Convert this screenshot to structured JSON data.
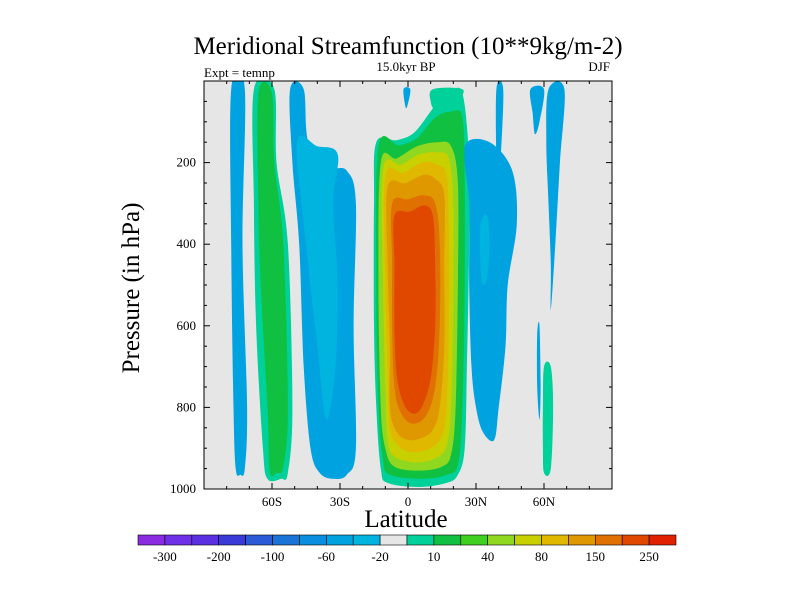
{
  "chart_data": {
    "type": "heatmap",
    "title": "Meridional Streamfunction (10**9kg/m-2)",
    "subtitle": "15.0kyr BP",
    "left_label": "Expt = temnp",
    "right_label": "DJF",
    "xlabel": "Latitude",
    "ylabel": "Pressure (in hPa)",
    "xlim": [
      -90,
      90
    ],
    "ylim": [
      0,
      1000
    ],
    "x_ticks": [
      {
        "value": -60,
        "label": "60S"
      },
      {
        "value": -30,
        "label": "30S"
      },
      {
        "value": 0,
        "label": "0"
      },
      {
        "value": 30,
        "label": "30N"
      },
      {
        "value": 60,
        "label": "60N"
      }
    ],
    "y_ticks": [
      {
        "value": 200,
        "label": "200"
      },
      {
        "value": 400,
        "label": "400"
      },
      {
        "value": 600,
        "label": "600"
      },
      {
        "value": 800,
        "label": "800"
      },
      {
        "value": 1000,
        "label": "1000"
      }
    ],
    "background_color": "#e6e6e6",
    "colorbar": {
      "colors": [
        "#8a2be2",
        "#7030e8",
        "#5a30e0",
        "#3a3ad8",
        "#2a5ad8",
        "#1a74d8",
        "#0a8ee0",
        "#00a2e0",
        "#00b4e0",
        "#e6e6e6",
        "#00d09a",
        "#10c040",
        "#40d020",
        "#90d820",
        "#c8d000",
        "#e0b800",
        "#e09800",
        "#e07000",
        "#e04800",
        "#e02000"
      ],
      "labels": [
        "-300",
        "-200",
        "-100",
        "-60",
        "-20",
        "10",
        "40",
        "80",
        "150",
        "250"
      ]
    },
    "features": [
      {
        "name": "cell-sh-polar-neg",
        "level": 1,
        "color": "#00a2e0",
        "points": [
          [
            -78,
            20
          ],
          [
            -72,
            20
          ],
          [
            -73,
            400
          ],
          [
            -71,
            800
          ],
          [
            -72,
            950
          ],
          [
            -74,
            965
          ],
          [
            -76,
            950
          ],
          [
            -77,
            800
          ],
          [
            -78,
            400
          ]
        ]
      },
      {
        "name": "cell-sh-mid-positive-outer",
        "level": 1,
        "color": "#00d09a",
        "points": [
          [
            -68,
            20
          ],
          [
            -59,
            20
          ],
          [
            -58,
            200
          ],
          [
            -53,
            400
          ],
          [
            -51,
            800
          ],
          [
            -53,
            960
          ],
          [
            -56,
            975
          ],
          [
            -62,
            975
          ],
          [
            -64,
            900
          ],
          [
            -67,
            600
          ],
          [
            -68,
            300
          ]
        ]
      },
      {
        "name": "cell-sh-mid-positive",
        "level": 2,
        "color": "#10c040",
        "points": [
          [
            -66,
            30
          ],
          [
            -60,
            30
          ],
          [
            -59,
            200
          ],
          [
            -55,
            400
          ],
          [
            -53,
            800
          ],
          [
            -55,
            945
          ],
          [
            -58,
            960
          ],
          [
            -61,
            955
          ],
          [
            -62,
            800
          ],
          [
            -65,
            500
          ],
          [
            -66,
            300
          ]
        ]
      },
      {
        "name": "cell-sh-ferrel-neg",
        "level": 1,
        "color": "#00a2e0",
        "points": [
          [
            -52,
            20
          ],
          [
            -46,
            20
          ],
          [
            -44,
            150
          ],
          [
            -35,
            210
          ],
          [
            -27,
            220
          ],
          [
            -23,
            300
          ],
          [
            -24,
            600
          ],
          [
            -23,
            900
          ],
          [
            -27,
            965
          ],
          [
            -33,
            975
          ],
          [
            -39,
            960
          ],
          [
            -43,
            900
          ],
          [
            -46,
            700
          ],
          [
            -48,
            400
          ],
          [
            -51,
            200
          ]
        ]
      },
      {
        "name": "cell-sh-ferrel-core",
        "level": 2,
        "color": "#00b4e0",
        "points": [
          [
            -49,
            150
          ],
          [
            -40,
            160
          ],
          [
            -31,
            180
          ],
          [
            -33,
            300
          ],
          [
            -31,
            500
          ],
          [
            -32,
            700
          ],
          [
            -36,
            830
          ],
          [
            -40,
            650
          ],
          [
            -45,
            400
          ]
        ]
      },
      {
        "name": "cell-hadley-ring1",
        "level": 1,
        "color": "#00d09a",
        "points": [
          [
            -14,
            150
          ],
          [
            -5,
            145
          ],
          [
            3,
            125
          ],
          [
            12,
            60
          ],
          [
            18,
            30
          ],
          [
            24,
            30
          ],
          [
            27,
            200
          ],
          [
            27,
            400
          ],
          [
            26,
            700
          ],
          [
            25,
            900
          ],
          [
            22,
            965
          ],
          [
            17,
            985
          ],
          [
            5,
            995
          ],
          [
            -9,
            985
          ],
          [
            -12,
            950
          ],
          [
            -14,
            800
          ],
          [
            -15,
            600
          ],
          [
            -15,
            300
          ]
        ]
      },
      {
        "name": "cell-hadley-ring2",
        "level": 2,
        "color": "#10c040",
        "points": [
          [
            -13,
            160
          ],
          [
            -4,
            158
          ],
          [
            4,
            140
          ],
          [
            12,
            90
          ],
          [
            19,
            75
          ],
          [
            24,
            90
          ],
          [
            25,
            250
          ],
          [
            25,
            500
          ],
          [
            24,
            800
          ],
          [
            22,
            940
          ],
          [
            17,
            965
          ],
          [
            6,
            975
          ],
          [
            -8,
            965
          ],
          [
            -11,
            930
          ],
          [
            -13,
            800
          ],
          [
            -14,
            500
          ]
        ]
      },
      {
        "name": "cell-hadley-ring3",
        "level": 3,
        "color": "#90d820",
        "points": [
          [
            -12,
            200
          ],
          [
            -5,
            190
          ],
          [
            4,
            160
          ],
          [
            13,
            150
          ],
          [
            19,
            160
          ],
          [
            22,
            250
          ],
          [
            22,
            500
          ],
          [
            21,
            800
          ],
          [
            19,
            915
          ],
          [
            15,
            945
          ],
          [
            5,
            955
          ],
          [
            -6,
            945
          ],
          [
            -10,
            900
          ],
          [
            -12,
            800
          ],
          [
            -13,
            500
          ]
        ]
      },
      {
        "name": "cell-hadley-ring4",
        "level": 4,
        "color": "#c8d000",
        "points": [
          [
            -11,
            215
          ],
          [
            -3,
            205
          ],
          [
            5,
            180
          ],
          [
            13,
            175
          ],
          [
            18,
            190
          ],
          [
            20,
            300
          ],
          [
            20,
            550
          ],
          [
            19,
            800
          ],
          [
            17,
            895
          ],
          [
            12,
            925
          ],
          [
            3,
            935
          ],
          [
            -6,
            920
          ],
          [
            -9,
            880
          ],
          [
            -10,
            750
          ],
          [
            -11,
            500
          ]
        ]
      },
      {
        "name": "cell-hadley-ring5",
        "level": 5,
        "color": "#e0b800",
        "points": [
          [
            -10,
            235
          ],
          [
            -2,
            225
          ],
          [
            6,
            200
          ],
          [
            13,
            205
          ],
          [
            17,
            230
          ],
          [
            18,
            350
          ],
          [
            18,
            600
          ],
          [
            17,
            800
          ],
          [
            15,
            870
          ],
          [
            10,
            900
          ],
          [
            2,
            910
          ],
          [
            -4,
            895
          ],
          [
            -8,
            850
          ],
          [
            -9,
            700
          ],
          [
            -10,
            500
          ]
        ]
      },
      {
        "name": "cell-hadley-ring6",
        "level": 6,
        "color": "#e09800",
        "points": [
          [
            -9,
            260
          ],
          [
            -1,
            250
          ],
          [
            7,
            230
          ],
          [
            12,
            240
          ],
          [
            16,
            280
          ],
          [
            16,
            450
          ],
          [
            16,
            650
          ],
          [
            14,
            800
          ],
          [
            11,
            855
          ],
          [
            6,
            875
          ],
          [
            0,
            880
          ],
          [
            -5,
            860
          ],
          [
            -8,
            800
          ],
          [
            -8,
            650
          ],
          [
            -9,
            450
          ]
        ]
      },
      {
        "name": "cell-hadley-ring7",
        "level": 7,
        "color": "#e07000",
        "points": [
          [
            -7,
            300
          ],
          [
            0,
            290
          ],
          [
            7,
            280
          ],
          [
            12,
            300
          ],
          [
            14,
            400
          ],
          [
            14,
            600
          ],
          [
            12,
            750
          ],
          [
            8,
            820
          ],
          [
            2,
            840
          ],
          [
            -3,
            815
          ],
          [
            -6,
            750
          ],
          [
            -7,
            600
          ],
          [
            -7,
            450
          ]
        ]
      },
      {
        "name": "cell-hadley-core",
        "level": 8,
        "color": "#e04800",
        "points": [
          [
            -6,
            330
          ],
          [
            1,
            320
          ],
          [
            7,
            305
          ],
          [
            11,
            330
          ],
          [
            12,
            450
          ],
          [
            12,
            600
          ],
          [
            10,
            730
          ],
          [
            6,
            800
          ],
          [
            2,
            815
          ],
          [
            -2,
            790
          ],
          [
            -5,
            720
          ],
          [
            -6,
            600
          ],
          [
            -6,
            450
          ]
        ]
      },
      {
        "name": "cell-nh-upper-neg",
        "level": 1,
        "color": "#00a2e0",
        "points": [
          [
            -2,
            20
          ],
          [
            1,
            20
          ],
          [
            0,
            55
          ],
          [
            -1,
            65
          ]
        ]
      },
      {
        "name": "cell-nh-upper-pos",
        "level": 1,
        "color": "#00d09a",
        "points": [
          [
            11,
            20
          ],
          [
            24,
            20
          ],
          [
            22,
            50
          ],
          [
            18,
            65
          ],
          [
            12,
            70
          ],
          [
            10,
            50
          ]
        ]
      },
      {
        "name": "cell-nh-ferrel-neg",
        "level": 1,
        "color": "#00a2e0",
        "points": [
          [
            25,
            160
          ],
          [
            36,
            150
          ],
          [
            46,
            220
          ],
          [
            48,
            350
          ],
          [
            44,
            500
          ],
          [
            43,
            650
          ],
          [
            40,
            800
          ],
          [
            38,
            880
          ],
          [
            33,
            860
          ],
          [
            30,
            800
          ],
          [
            28,
            700
          ],
          [
            27,
            500
          ],
          [
            27,
            300
          ]
        ]
      },
      {
        "name": "cell-nh-ferrel-core",
        "level": 2,
        "color": "#00b4e0",
        "points": [
          [
            32,
            350
          ],
          [
            35,
            330
          ],
          [
            36,
            400
          ],
          [
            35,
            480
          ],
          [
            33,
            500
          ],
          [
            32,
            450
          ]
        ]
      },
      {
        "name": "cell-nh-upper-neg2",
        "level": 1,
        "color": "#00a2e0",
        "points": [
          [
            39,
            20
          ],
          [
            42,
            20
          ],
          [
            41,
            180
          ],
          [
            40,
            260
          ],
          [
            39,
            200
          ]
        ]
      },
      {
        "name": "cell-nh-upper-neg3",
        "level": 1,
        "color": "#00a2e0",
        "points": [
          [
            54,
            20
          ],
          [
            60,
            20
          ],
          [
            58,
            100
          ],
          [
            56,
            130
          ],
          [
            55,
            80
          ]
        ]
      },
      {
        "name": "cell-nh-polar-neg",
        "level": 1,
        "color": "#00a2e0",
        "points": [
          [
            62,
            20
          ],
          [
            69,
            20
          ],
          [
            67,
            200
          ],
          [
            65,
            400
          ],
          [
            63,
            560
          ],
          [
            63,
            450
          ],
          [
            62,
            300
          ],
          [
            61,
            150
          ]
        ]
      },
      {
        "name": "cell-nh-polar-neg-low",
        "level": 1,
        "color": "#00a2e0",
        "points": [
          [
            57,
            620
          ],
          [
            58,
            600
          ],
          [
            58.5,
            750
          ],
          [
            58,
            830
          ],
          [
            57,
            750
          ]
        ]
      },
      {
        "name": "cell-nh-polar-pos-low",
        "level": 1,
        "color": "#00d09a",
        "points": [
          [
            60,
            700
          ],
          [
            63,
            700
          ],
          [
            64,
            800
          ],
          [
            63,
            950
          ],
          [
            60,
            960
          ],
          [
            59.5,
            900
          ],
          [
            59.5,
            800
          ]
        ]
      }
    ]
  }
}
